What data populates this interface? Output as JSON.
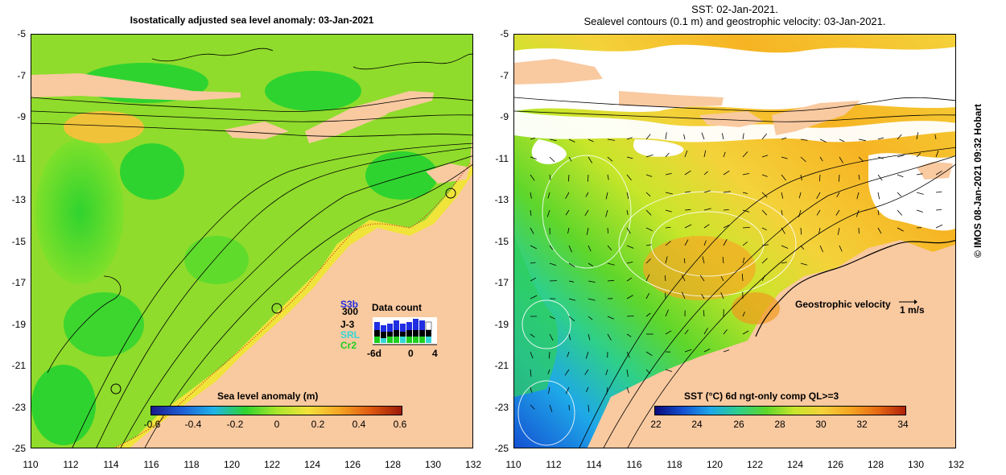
{
  "left_panel": {
    "title": "Isostatically adjusted sea level anomaly: 03-Jan-2021",
    "y_ticks": [
      "-5",
      "-7",
      "-9",
      "-11",
      "-13",
      "-15",
      "-17",
      "-19",
      "-21",
      "-23",
      "-25"
    ],
    "x_ticks": [
      "110",
      "112",
      "114",
      "116",
      "118",
      "120",
      "122",
      "124",
      "126",
      "128",
      "130",
      "132"
    ],
    "colorbar": {
      "title": "Sea level anomaly (m)",
      "ticks": [
        "-0.6",
        "-0.4",
        "-0.2",
        "0",
        "0.2",
        "0.4",
        "0.6"
      ],
      "colors": [
        "#1a1a8c",
        "#1e5fd6",
        "#1fb4e8",
        "#2fd32f",
        "#a8e62a",
        "#f4e23a",
        "#f6a623",
        "#e05a10",
        "#9c1a0a"
      ]
    },
    "data_count": {
      "label": "Data count",
      "satellites": [
        {
          "name": "S3b",
          "color": "#1f2ee0"
        },
        {
          "name": "300",
          "color": "#000000"
        },
        {
          "name": "J-3",
          "color": "#000000"
        },
        {
          "name": "SRL",
          "color": "#33d6d6"
        },
        {
          "name": "Cr2",
          "color": "#1ecf1e"
        }
      ],
      "axis_left": "-6d",
      "axis_mid": "0",
      "axis_right": "4"
    }
  },
  "right_panel": {
    "title_line1": "SST: 02-Jan-2021.",
    "title_line2": "Sealevel contours (0.1 m) and geostrophic velocity: 03-Jan-2021.",
    "y_ticks": [
      "-5",
      "-7",
      "-9",
      "-11",
      "-13",
      "-15",
      "-17",
      "-19",
      "-21",
      "-23",
      "-25"
    ],
    "x_ticks": [
      "110",
      "112",
      "114",
      "116",
      "118",
      "120",
      "122",
      "124",
      "126",
      "128",
      "130",
      "132"
    ],
    "velocity_label": "Geostrophic velocity",
    "velocity_scale": "1 m/s",
    "colorbar": {
      "title": "SST (°C) 6d ngt-only comp QL>=3",
      "ticks": [
        "22",
        "24",
        "26",
        "28",
        "30",
        "32",
        "34"
      ],
      "colors": [
        "#0a0a7a",
        "#1450d2",
        "#1ea8e8",
        "#2ecf8a",
        "#5fd62a",
        "#c8e62a",
        "#f4d23a",
        "#f6a623",
        "#e86a12",
        "#b0200a"
      ]
    }
  },
  "credit": "© IMOS 08-Jan-2021 09:32 Hobart",
  "colors": {
    "land": "#f9c9a0",
    "cloud": "#ffffff"
  }
}
